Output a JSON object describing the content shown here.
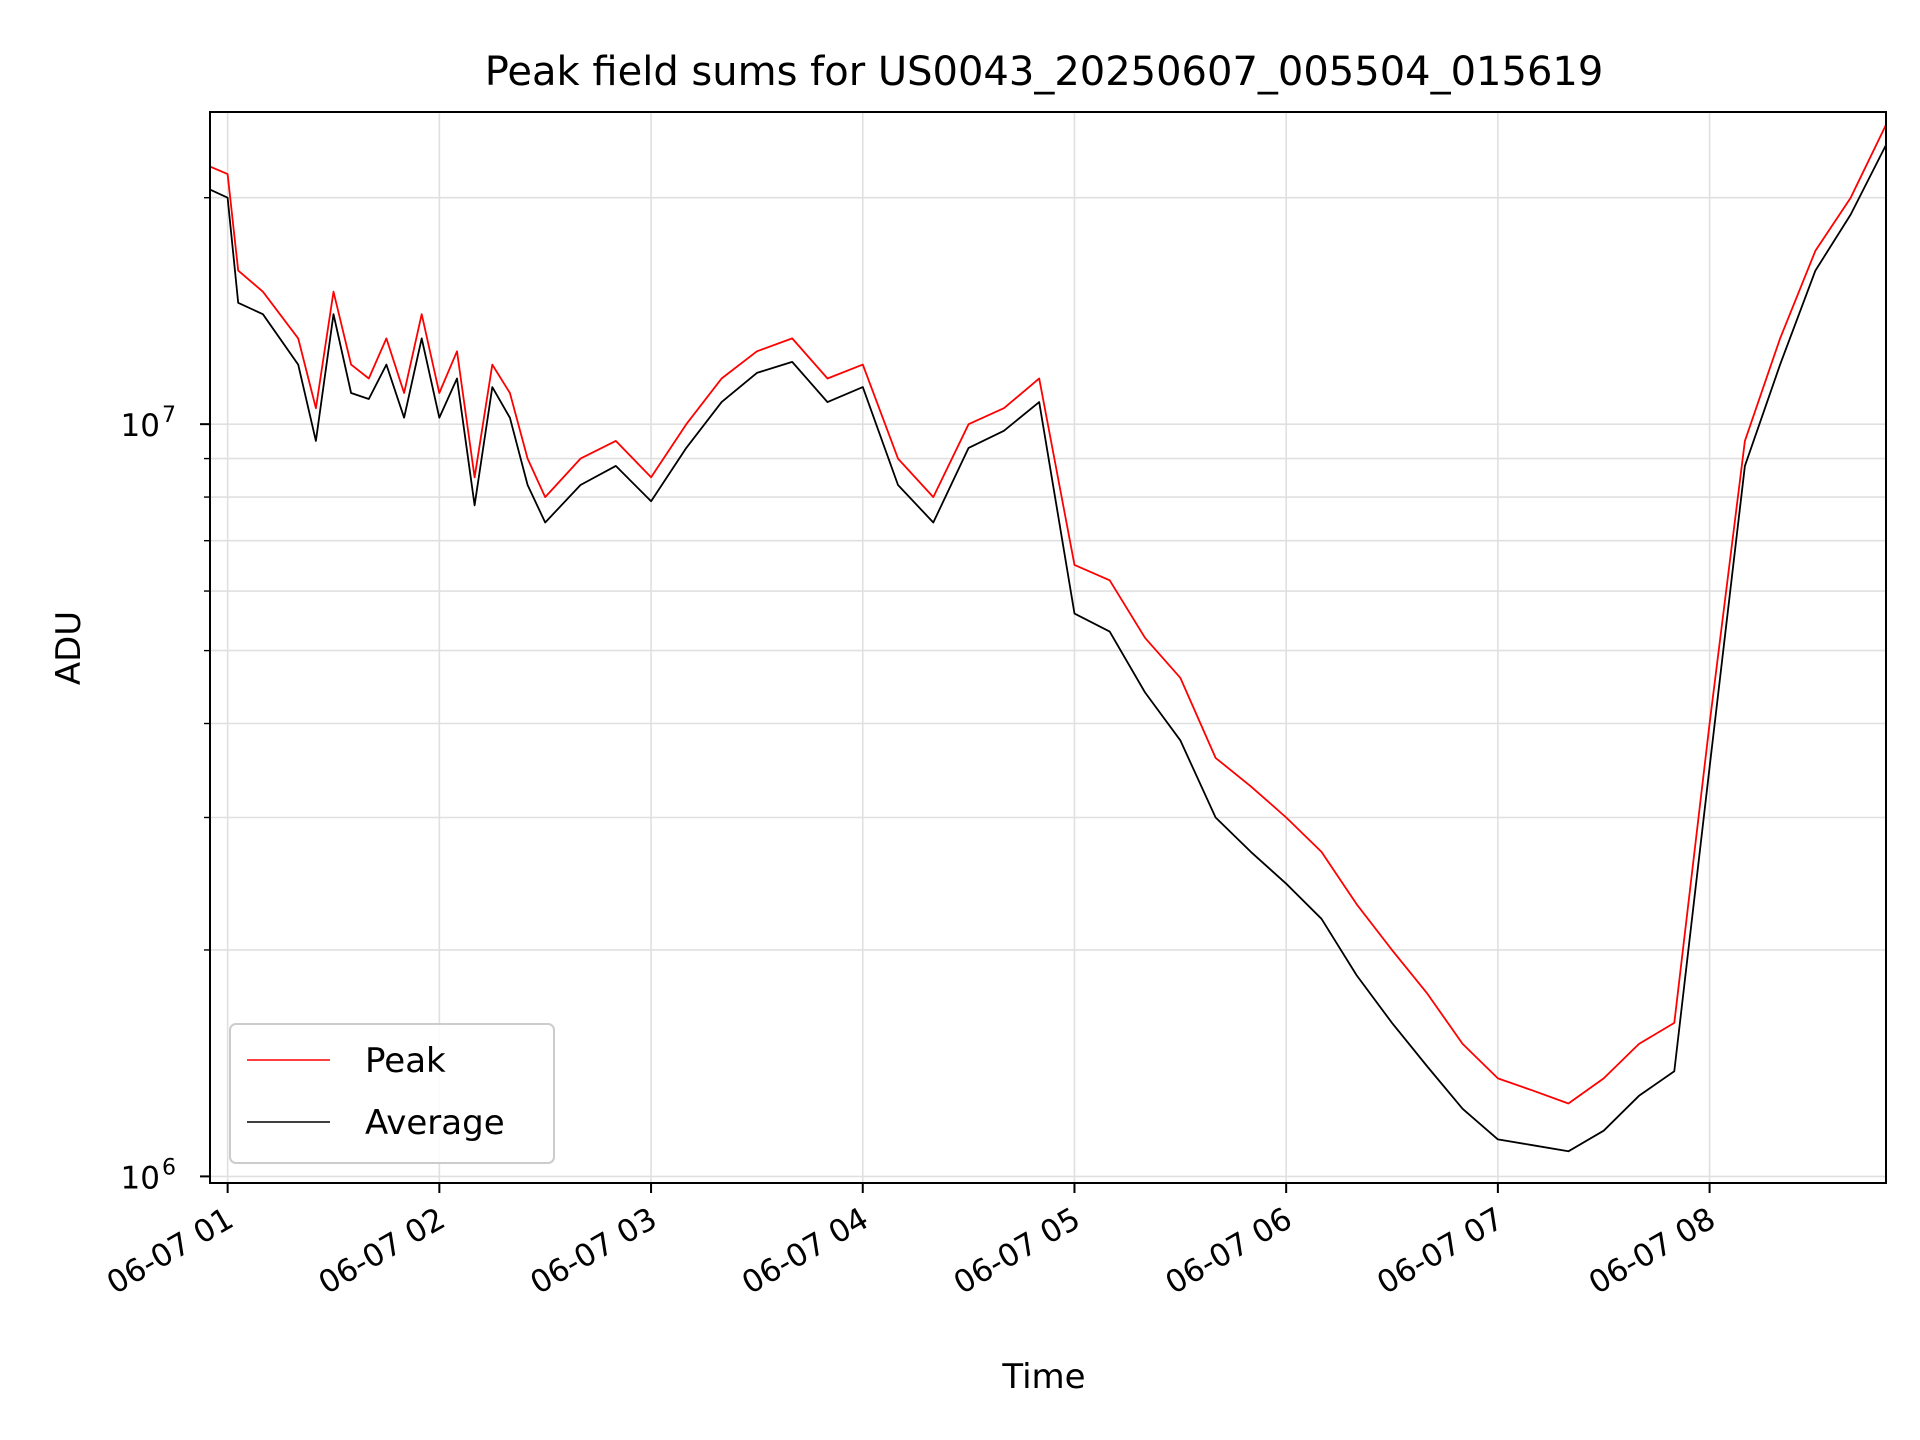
{
  "chart_data": {
    "type": "line",
    "title": "Peak field sums for US0043_20250607_005504_015619",
    "xlabel": "Time",
    "ylabel": "ADU",
    "y_scale": "log",
    "ylim": [
      980000,
      26000000
    ],
    "xlim": [
      "06-07 00:55",
      "06-07 08:50"
    ],
    "x_ticks": [
      "06-07 01",
      "06-07 02",
      "06-07 03",
      "06-07 04",
      "06-07 05",
      "06-07 06",
      "06-07 07",
      "06-07 08"
    ],
    "y_ticks": [
      {
        "value": 1000000,
        "base": "10",
        "exp": "6"
      },
      {
        "value": 10000000,
        "base": "10",
        "exp": "7"
      }
    ],
    "grid": true,
    "legend": {
      "position": "lower-left"
    },
    "colors": {
      "peak": "#ff0000",
      "average": "#000000"
    },
    "x": [
      "06-07 00:55",
      "06-07 01:00",
      "06-07 01:03",
      "06-07 01:10",
      "06-07 01:20",
      "06-07 01:25",
      "06-07 01:30",
      "06-07 01:35",
      "06-07 01:40",
      "06-07 01:45",
      "06-07 01:50",
      "06-07 01:55",
      "06-07 02:00",
      "06-07 02:05",
      "06-07 02:10",
      "06-07 02:15",
      "06-07 02:20",
      "06-07 02:25",
      "06-07 02:30",
      "06-07 02:40",
      "06-07 02:50",
      "06-07 03:00",
      "06-07 03:10",
      "06-07 03:20",
      "06-07 03:30",
      "06-07 03:40",
      "06-07 03:50",
      "06-07 04:00",
      "06-07 04:10",
      "06-07 04:20",
      "06-07 04:30",
      "06-07 04:40",
      "06-07 04:50",
      "06-07 05:00",
      "06-07 05:10",
      "06-07 05:20",
      "06-07 05:30",
      "06-07 05:40",
      "06-07 05:50",
      "06-07 06:00",
      "06-07 06:10",
      "06-07 06:20",
      "06-07 06:30",
      "06-07 06:40",
      "06-07 06:50",
      "06-07 07:00",
      "06-07 07:10",
      "06-07 07:20",
      "06-07 07:30",
      "06-07 07:40",
      "06-07 07:50",
      "06-07 08:00",
      "06-07 08:10",
      "06-07 08:20",
      "06-07 08:30",
      "06-07 08:40",
      "06-07 08:50"
    ],
    "series": [
      {
        "name": "Peak",
        "values": [
          22000000,
          21500000,
          16000000,
          15000000,
          13000000,
          10500000,
          15000000,
          12000000,
          11500000,
          13000000,
          11000000,
          14000000,
          11000000,
          12500000,
          8500000,
          12000000,
          11000000,
          9000000,
          8000000,
          9000000,
          9500000,
          8500000,
          10000000,
          11500000,
          12500000,
          13000000,
          11500000,
          12000000,
          9000000,
          8000000,
          10000000,
          10500000,
          11500000,
          6500000,
          6200000,
          5200000,
          4600000,
          3600000,
          3300000,
          3000000,
          2700000,
          2300000,
          2000000,
          1750000,
          1500000,
          1350000,
          1300000,
          1250000,
          1350000,
          1500000,
          1600000,
          4000000,
          9500000,
          13000000,
          17000000,
          20000000,
          25000000
        ]
      },
      {
        "name": "Average",
        "values": [
          20500000,
          20000000,
          14500000,
          14000000,
          12000000,
          9500000,
          14000000,
          11000000,
          10800000,
          12000000,
          10200000,
          13000000,
          10200000,
          11500000,
          7800000,
          11200000,
          10200000,
          8300000,
          7400000,
          8300000,
          8800000,
          7900000,
          9300000,
          10700000,
          11700000,
          12100000,
          10700000,
          11200000,
          8300000,
          7400000,
          9300000,
          9800000,
          10700000,
          5600000,
          5300000,
          4400000,
          3800000,
          3000000,
          2700000,
          2450000,
          2200000,
          1850000,
          1600000,
          1400000,
          1230000,
          1120000,
          1100000,
          1080000,
          1150000,
          1280000,
          1380000,
          3500000,
          8800000,
          12000000,
          16000000,
          19000000,
          23500000
        ]
      }
    ]
  }
}
